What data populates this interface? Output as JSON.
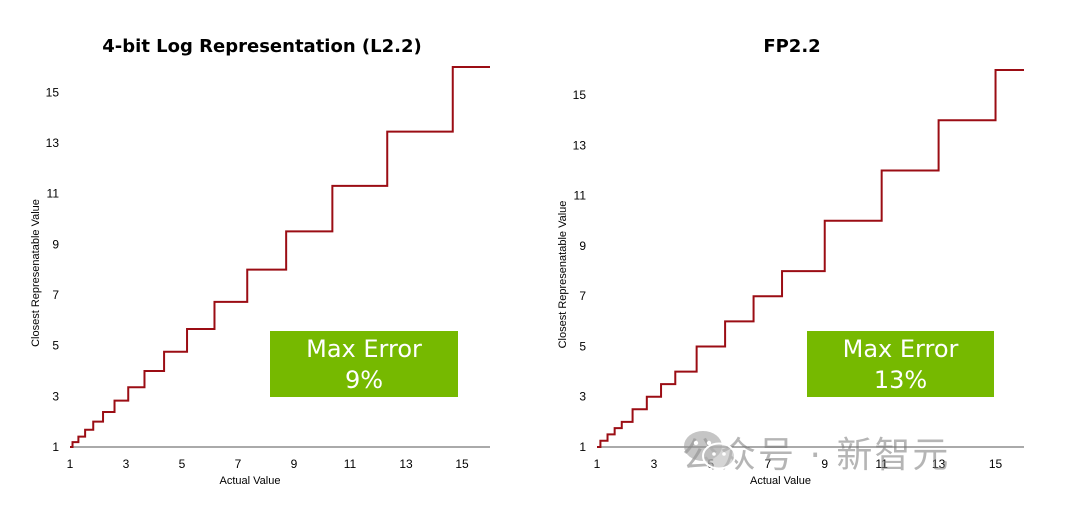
{
  "chart_data": [
    {
      "type": "line",
      "title": "4-bit Log Representation (L2.2)",
      "xlabel": "Actual Value",
      "ylabel": "Closest Represenatable Value",
      "xlim": [
        1,
        16
      ],
      "ylim": [
        1,
        16
      ],
      "xticks": [
        1,
        3,
        5,
        7,
        9,
        11,
        13,
        15
      ],
      "yticks": [
        1,
        3,
        5,
        7,
        9,
        11,
        13,
        15
      ],
      "series": [
        {
          "color": "#9b0d14",
          "step": true,
          "levels": [
            1.0,
            1.19,
            1.41,
            1.68,
            2.0,
            2.38,
            2.83,
            3.36,
            4.0,
            4.76,
            5.66,
            6.73,
            8.0,
            9.51,
            11.31,
            13.45,
            16.0
          ],
          "thresholds": [
            1.09,
            1.3,
            1.54,
            1.83,
            2.18,
            2.59,
            3.08,
            3.66,
            4.36,
            5.18,
            6.16,
            7.33,
            8.72,
            10.37,
            12.33,
            14.67
          ]
        }
      ],
      "annotation": {
        "line1": "Max Error",
        "line2": "9%"
      }
    },
    {
      "type": "line",
      "title": "FP2.2",
      "xlabel": "Actual Value",
      "ylabel": "Closest Represenatable Value",
      "xlim": [
        1,
        16
      ],
      "ylim": [
        1,
        16
      ],
      "xticks": [
        1,
        3,
        5,
        7,
        9,
        11,
        13,
        15
      ],
      "yticks": [
        1,
        3,
        5,
        7,
        9,
        11,
        13,
        15
      ],
      "series": [
        {
          "color": "#9b0d14",
          "step": true,
          "levels": [
            1.0,
            1.25,
            1.5,
            1.75,
            2.0,
            2.5,
            3.0,
            3.5,
            4.0,
            5.0,
            6.0,
            7.0,
            8.0,
            10.0,
            12.0,
            14.0,
            16.0
          ],
          "thresholds": [
            1.12,
            1.37,
            1.62,
            1.87,
            2.25,
            2.75,
            3.25,
            3.75,
            4.5,
            5.5,
            6.5,
            7.5,
            9.0,
            11.0,
            13.0,
            15.0
          ]
        }
      ],
      "annotation": {
        "line1": "Max Error",
        "line2": "13%"
      }
    }
  ],
  "watermark": {
    "text": "公众号 · 新智元",
    "icon": "wechat-icon"
  }
}
